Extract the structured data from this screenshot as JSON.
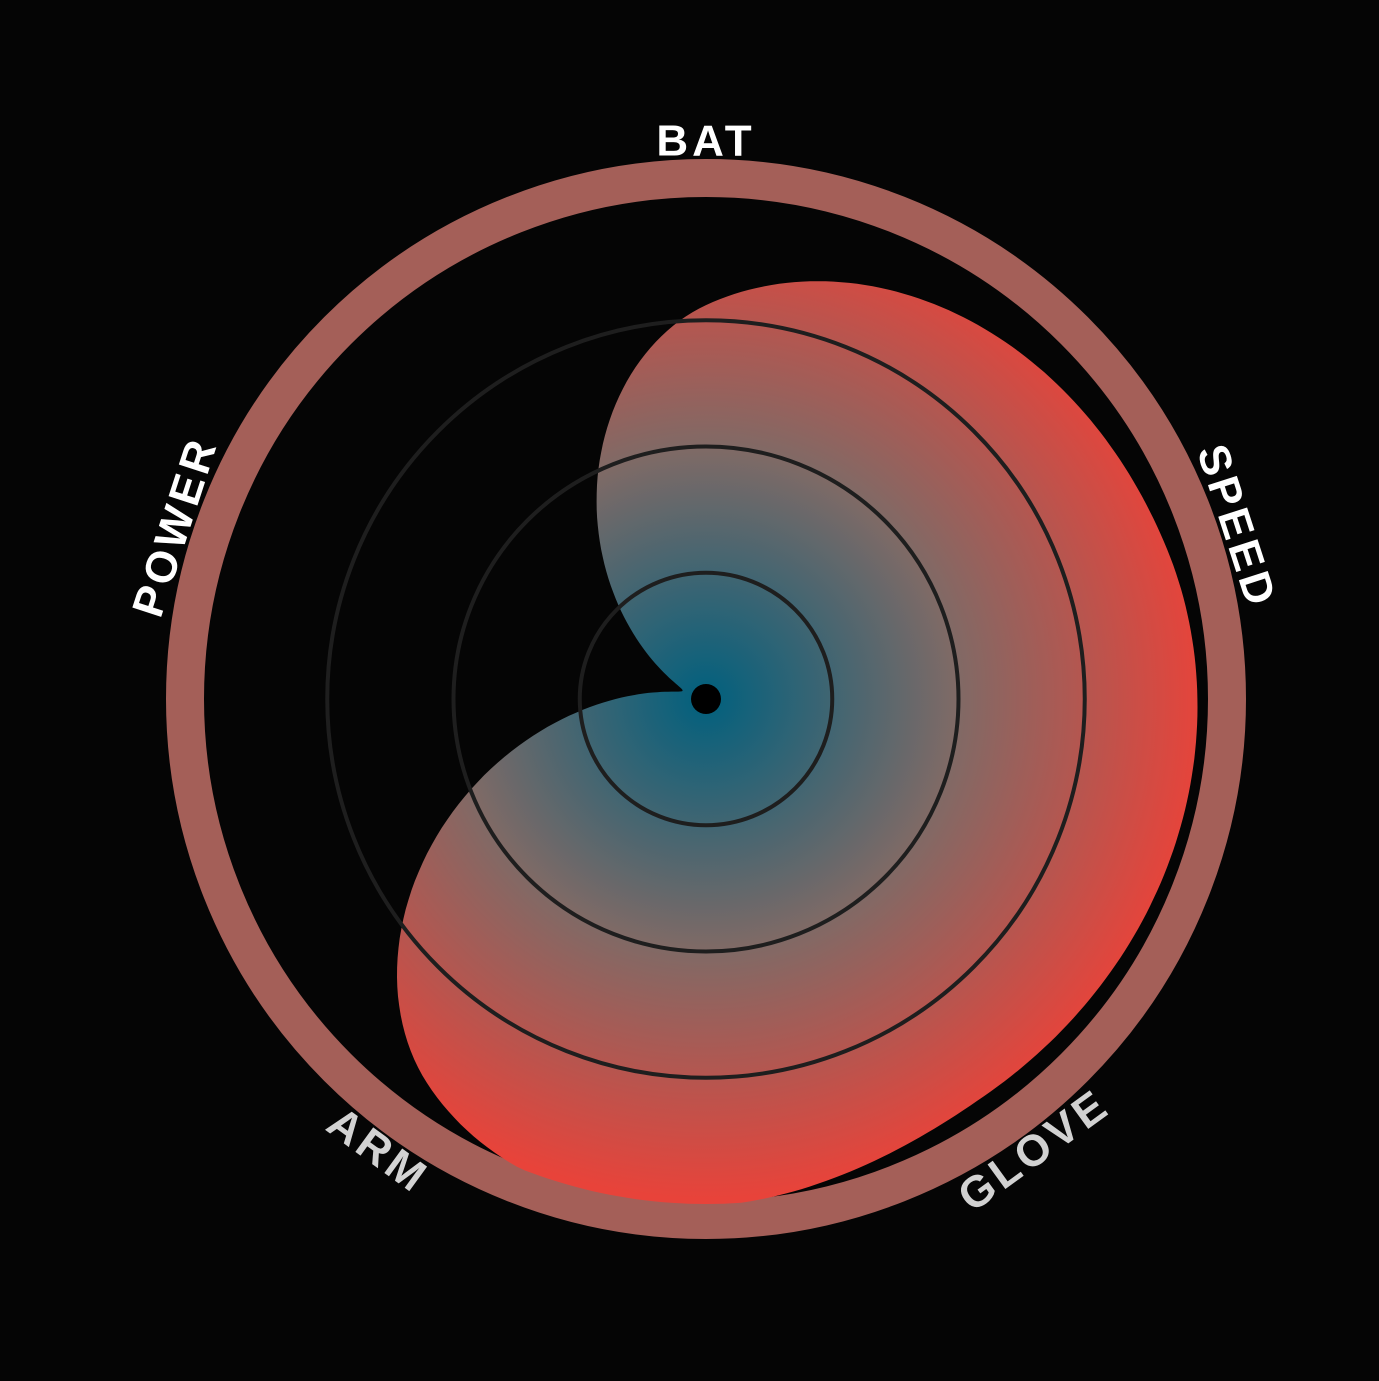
{
  "chart_data": {
    "type": "radar",
    "shape": "smooth-radial-blob",
    "categories": [
      "BAT",
      "SPEED",
      "GLOVE",
      "ARM",
      "POWER"
    ],
    "values": [
      0.78,
      0.96,
      0.96,
      0.94,
      0.05
    ],
    "rlim": [
      0,
      1
    ],
    "rings": [
      0.25,
      0.5,
      0.75
    ],
    "grid": true,
    "colors": {
      "background": "#050505",
      "outer_ring": "#a45f58",
      "fill_center": "#00607e",
      "fill_mid": "#7f6a66",
      "fill_edge": "#e8433a",
      "grid_ring": "#1e1e1e",
      "center_dot": "#000000",
      "label_primary": "#ffffff",
      "label_secondary": "#d2d2d2"
    }
  }
}
